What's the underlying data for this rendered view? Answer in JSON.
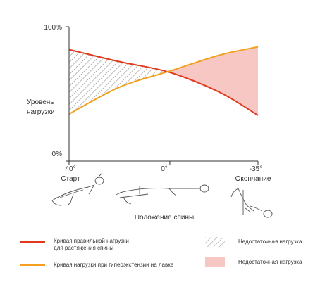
{
  "chart_data": {
    "type": "line",
    "ylabel": "Уровень нагрузки",
    "xlabel": "Положение спины",
    "y_ticks": [
      "100%",
      "0%"
    ],
    "x": [
      40,
      0,
      -35
    ],
    "x_ticks": [
      "40°",
      "0°",
      "-35°"
    ],
    "x_tick_captions": [
      "Старт",
      "",
      "Окончание"
    ],
    "ylim": [
      0,
      100
    ],
    "series": [
      {
        "name": "Кривая правильной нагрузки для растяжения спины",
        "color": "#e03a1e",
        "x": [
          40,
          20,
          0,
          -20,
          -35
        ],
        "values": [
          83,
          74,
          66,
          51,
          34
        ]
      },
      {
        "name": "Кривая нагрузки при гиперэкстензии на лавке",
        "color": "#f2a01e",
        "x": [
          40,
          20,
          0,
          -20,
          -35
        ],
        "values": [
          35,
          55,
          67,
          79,
          85
        ]
      }
    ],
    "areas": [
      {
        "name": "Недостаточная нагрузка",
        "fill": "hatch"
      },
      {
        "name": "Недостаточная нагрузка",
        "fill": "#f7c7c4"
      }
    ],
    "grid": false
  },
  "legend": {
    "correct_label_1": "Кривая правильной нагрузки",
    "correct_label_2": "для растяжения спины",
    "bench_label": "Кривая нагрузки при гиперэкстензии на лавке",
    "hatch_label": "Недостаточная нагрузка",
    "pink_label": "Недостаточная нагрузка"
  },
  "colors": {
    "correct": "#e03a1e",
    "bench": "#f2a01e",
    "pink": "#f7c7c4",
    "axis": "#333333",
    "figure": "#555555"
  },
  "icons": [
    "person-start-icon",
    "person-neutral-icon",
    "person-end-icon"
  ]
}
